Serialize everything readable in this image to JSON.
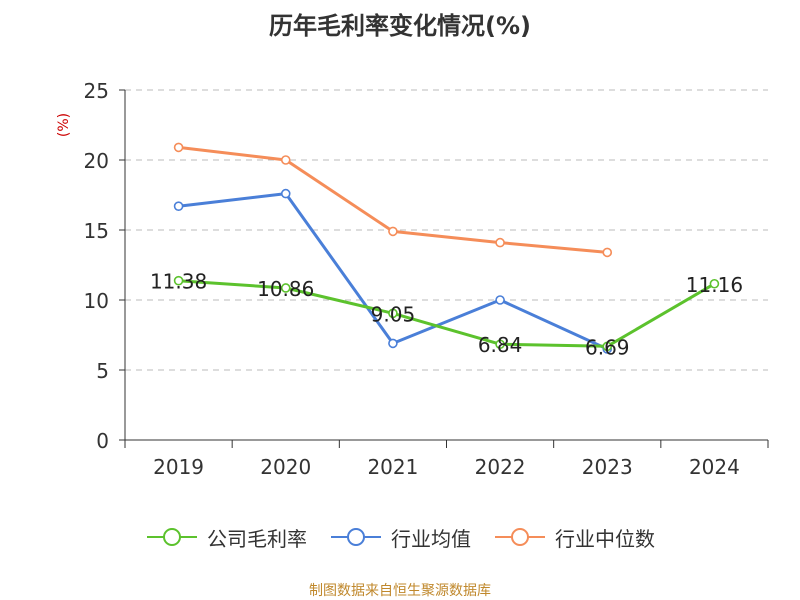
{
  "chart_data": {
    "type": "line",
    "title": "历年毛利率变化情况(%)",
    "ylabel": "(%)",
    "xlabel": "",
    "categories": [
      "2019",
      "2020",
      "2021",
      "2022",
      "2023",
      "2024"
    ],
    "ylim": [
      0,
      25
    ],
    "yticks": [
      0,
      5,
      10,
      15,
      20,
      25
    ],
    "grid": true,
    "legend_position": "bottom",
    "series": [
      {
        "name": "公司毛利率",
        "color": "#5cc22d",
        "labeled": true,
        "values": [
          11.38,
          10.86,
          9.05,
          6.84,
          6.69,
          11.16
        ],
        "labels": [
          "11.38",
          "10.86",
          "9.05",
          "6.84",
          "6.69",
          "11.16"
        ]
      },
      {
        "name": "行业均值",
        "color": "#4a7fd8",
        "labeled": false,
        "values": [
          16.7,
          17.6,
          6.9,
          10.0,
          6.5,
          null
        ]
      },
      {
        "name": "行业中位数",
        "color": "#f58d59",
        "labeled": false,
        "values": [
          20.9,
          20.0,
          14.9,
          14.1,
          13.4,
          null
        ]
      }
    ]
  },
  "source_text": "制图数据来自恒生聚源数据库"
}
